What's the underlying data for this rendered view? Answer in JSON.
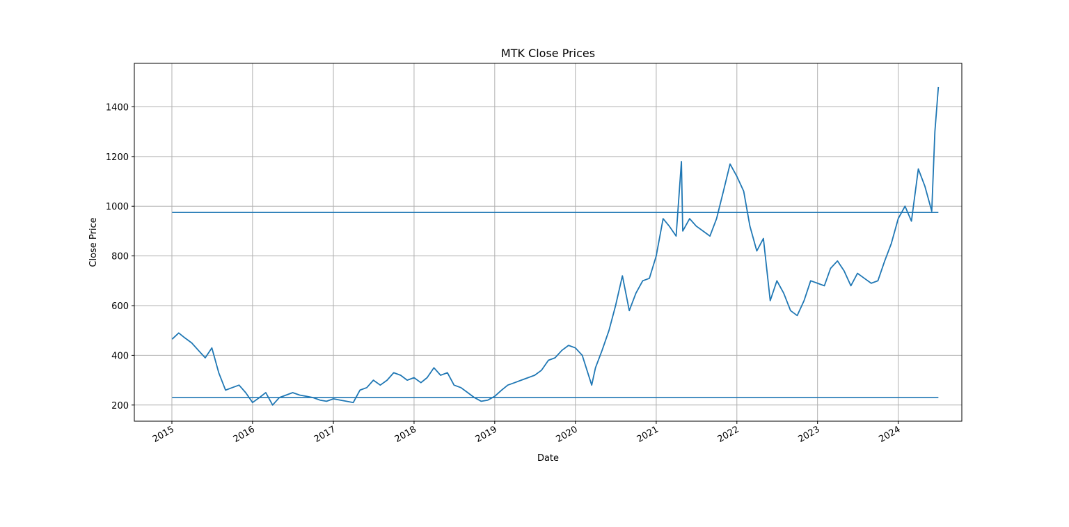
{
  "chart_data": {
    "type": "line",
    "title": "MTK Close Prices",
    "xlabel": "Date",
    "ylabel": "Close Price",
    "grid": true,
    "xlim": [
      "2014-07-15",
      "2024-10-15"
    ],
    "ylim": [
      135,
      1575
    ],
    "x_ticks": [
      "2015",
      "2016",
      "2017",
      "2018",
      "2019",
      "2020",
      "2021",
      "2022",
      "2023",
      "2024"
    ],
    "y_ticks": [
      200,
      400,
      600,
      800,
      1000,
      1200,
      1400
    ],
    "line_color": "#1f77b4",
    "series": [
      {
        "type": "line",
        "x": [
          "2015-01-02",
          "2015-02-01",
          "2015-03-01",
          "2015-04-01",
          "2015-05-01",
          "2015-06-01",
          "2015-07-01",
          "2015-08-01",
          "2015-09-01",
          "2015-10-01",
          "2015-11-01",
          "2015-12-01",
          "2016-01-01",
          "2016-02-01",
          "2016-03-01",
          "2016-04-01",
          "2016-05-01",
          "2016-06-01",
          "2016-07-01",
          "2016-08-01",
          "2016-09-01",
          "2016-10-01",
          "2016-11-01",
          "2016-12-01",
          "2017-01-01",
          "2017-02-01",
          "2017-03-01",
          "2017-04-01",
          "2017-05-01",
          "2017-06-01",
          "2017-07-01",
          "2017-08-01",
          "2017-09-01",
          "2017-10-01",
          "2017-11-01",
          "2017-12-01",
          "2018-01-01",
          "2018-02-01",
          "2018-03-01",
          "2018-04-01",
          "2018-05-01",
          "2018-06-01",
          "2018-07-01",
          "2018-08-01",
          "2018-09-01",
          "2018-10-01",
          "2018-11-01",
          "2018-12-01",
          "2019-01-01",
          "2019-02-01",
          "2019-03-01",
          "2019-04-01",
          "2019-05-01",
          "2019-06-01",
          "2019-07-01",
          "2019-08-01",
          "2019-09-01",
          "2019-10-01",
          "2019-11-01",
          "2019-12-01",
          "2020-01-01",
          "2020-02-01",
          "2020-03-15",
          "2020-04-01",
          "2020-05-01",
          "2020-06-01",
          "2020-07-01",
          "2020-08-01",
          "2020-09-01",
          "2020-10-01",
          "2020-11-01",
          "2020-12-01",
          "2021-01-01",
          "2021-02-01",
          "2021-03-01",
          "2021-04-01",
          "2021-04-25",
          "2021-05-01",
          "2021-06-01",
          "2021-07-01",
          "2021-08-01",
          "2021-09-01",
          "2021-10-01",
          "2021-11-01",
          "2021-12-01",
          "2022-01-01",
          "2022-02-01",
          "2022-03-01",
          "2022-04-01",
          "2022-05-01",
          "2022-06-01",
          "2022-07-01",
          "2022-08-01",
          "2022-09-01",
          "2022-10-01",
          "2022-11-01",
          "2022-12-01",
          "2023-01-01",
          "2023-02-01",
          "2023-03-01",
          "2023-04-01",
          "2023-05-01",
          "2023-06-01",
          "2023-07-01",
          "2023-08-01",
          "2023-09-01",
          "2023-10-01",
          "2023-11-01",
          "2023-12-01",
          "2024-01-01",
          "2024-02-01",
          "2024-03-01",
          "2024-04-01",
          "2024-05-01",
          "2024-06-01",
          "2024-06-15",
          "2024-07-01"
        ],
        "y": [
          465,
          490,
          470,
          450,
          420,
          390,
          430,
          330,
          260,
          270,
          280,
          250,
          210,
          230,
          250,
          200,
          230,
          240,
          250,
          240,
          235,
          230,
          220,
          215,
          225,
          220,
          215,
          210,
          260,
          270,
          300,
          280,
          300,
          330,
          320,
          300,
          310,
          290,
          310,
          350,
          320,
          330,
          280,
          270,
          250,
          230,
          215,
          220,
          235,
          260,
          280,
          290,
          300,
          310,
          320,
          340,
          380,
          390,
          420,
          440,
          430,
          400,
          280,
          350,
          420,
          500,
          600,
          720,
          580,
          650,
          700,
          710,
          800,
          950,
          920,
          880,
          1180,
          900,
          950,
          920,
          900,
          880,
          950,
          1060,
          1170,
          1120,
          1060,
          920,
          820,
          870,
          620,
          700,
          650,
          580,
          560,
          620,
          700,
          690,
          680,
          750,
          780,
          740,
          680,
          730,
          710,
          690,
          700,
          780,
          850,
          950,
          1000,
          940,
          1150,
          1080,
          980,
          1300,
          1480
        ]
      },
      {
        "name": "",
        "type": "hline",
        "y": 975,
        "x": [
          "2015-01-02",
          "2024-07-01"
        ]
      },
      {
        "name": "",
        "type": "hline",
        "y": 230,
        "x": [
          "2015-01-02",
          "2024-07-01"
        ]
      }
    ]
  }
}
